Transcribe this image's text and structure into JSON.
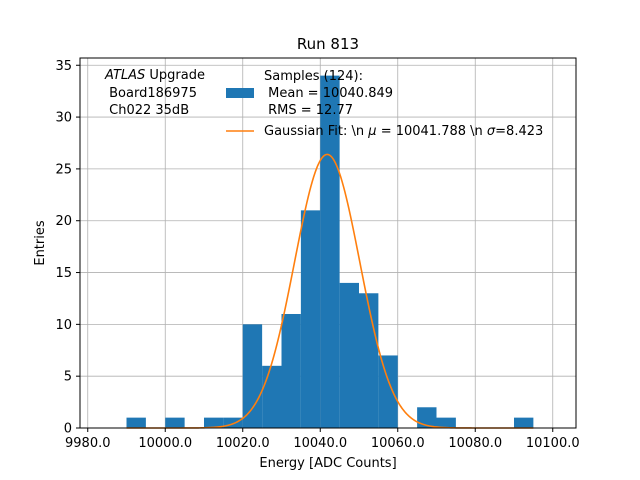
{
  "chart_data": {
    "type": "bar",
    "title": "Run 813",
    "xlabel": "Energy [ADC Counts]",
    "ylabel": "Entries",
    "xlim": [
      9978,
      10106
    ],
    "ylim": [
      0,
      35.7
    ],
    "grid": true,
    "x_ticks": [
      9980,
      10000,
      10020,
      10040,
      10060,
      10080,
      10100
    ],
    "x_tick_labels": [
      "9980.0",
      "10000.0",
      "10020.0",
      "10040.0",
      "10060.0",
      "10080.0",
      "10100.0"
    ],
    "y_ticks": [
      0,
      5,
      10,
      15,
      20,
      25,
      30,
      35
    ],
    "y_tick_labels": [
      "0",
      "5",
      "10",
      "15",
      "20",
      "25",
      "30",
      "35"
    ],
    "bin_width": 5,
    "bins_start": [
      9990,
      10000,
      10010,
      10015,
      10020,
      10025,
      10030,
      10035,
      10040,
      10045,
      10050,
      10055,
      10065,
      10070,
      10090
    ],
    "counts": [
      1,
      1,
      1,
      1,
      10,
      6,
      11,
      21,
      34,
      14,
      13,
      7,
      2,
      1,
      1
    ],
    "series": [
      {
        "name": "Samples (124):\n Mean = 10040.849\n RMS = 12.77",
        "color": "#1f77b4"
      },
      {
        "name": "Gaussian Fit: \\n $\\mu$ = 10041.788 \\n $\\sigma$=8.423",
        "color": "#ff7f0e",
        "amplitude": 26.4,
        "mu": 10041.788,
        "sigma": 8.423
      }
    ],
    "annotation": {
      "line1_italic": "ATLAS",
      "line1_rest": " Upgrade",
      "line2": " Board186975",
      "line3": " Ch022 35dB"
    },
    "legend": {
      "placement": "top-center",
      "hist_lines": [
        "Samples (124):",
        " Mean = 10040.849",
        " RMS = 12.77"
      ],
      "fit_label_prefix": "Gaussian Fit: \\n ",
      "fit_mu_symbol": "μ",
      "fit_mid": " = 10041.788 \\n ",
      "fit_sigma_symbol": "σ",
      "fit_suffix": "=8.423"
    }
  }
}
